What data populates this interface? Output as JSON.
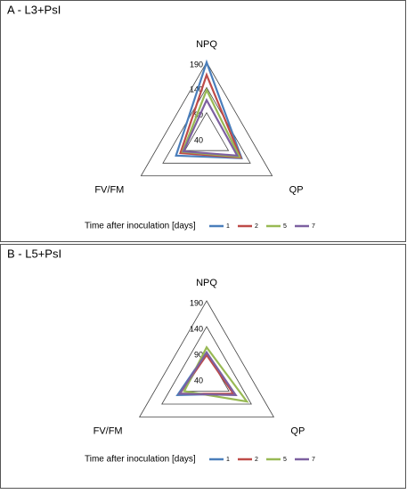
{
  "chart_data": [
    {
      "type": "radar",
      "title": "A - L3+PsI",
      "categories": [
        "NPQ",
        "QP",
        "FV/FM"
      ],
      "rlim": [
        40,
        190
      ],
      "rticks": [
        40,
        90,
        140,
        190
      ],
      "legend_title": "Time after inoculation [days]",
      "series": [
        {
          "name": "1",
          "color": "#4a7ebb",
          "values": [
            190,
            120,
            110
          ]
        },
        {
          "name": "2",
          "color": "#be4b48",
          "values": [
            165,
            118,
            100
          ]
        },
        {
          "name": "5",
          "color": "#98b954",
          "values": [
            135,
            115,
            95
          ]
        },
        {
          "name": "7",
          "color": "#7d60a0",
          "values": [
            115,
            110,
            93
          ]
        }
      ]
    },
    {
      "type": "radar",
      "title": "B - L5+PsI",
      "categories": [
        "NPQ",
        "QP",
        "FV/FM"
      ],
      "rlim": [
        40,
        190
      ],
      "rticks": [
        40,
        90,
        140,
        190
      ],
      "legend_title": "Time after inoculation [days]",
      "series": [
        {
          "name": "1",
          "color": "#4a7ebb",
          "values": [
            90,
            100,
            105
          ]
        },
        {
          "name": "2",
          "color": "#be4b48",
          "values": [
            85,
            100,
            100
          ]
        },
        {
          "name": "5",
          "color": "#98b954",
          "values": [
            100,
            130,
            90
          ]
        },
        {
          "name": "7",
          "color": "#7d60a0",
          "values": [
            90,
            105,
            100
          ]
        }
      ]
    }
  ]
}
